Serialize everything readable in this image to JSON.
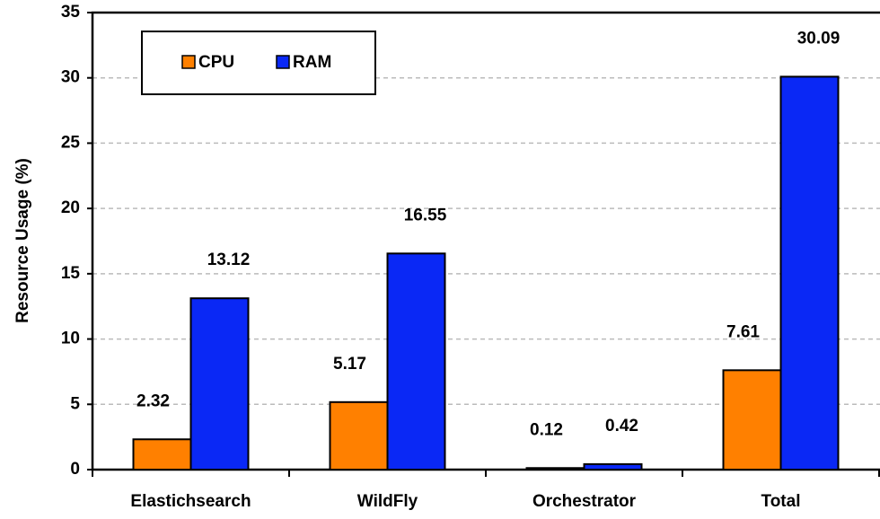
{
  "chart_data": {
    "type": "bar",
    "y_label": "Resource Usage (%)",
    "categories": [
      "Elastichsearch",
      "WildFly",
      "Orchestrator",
      "Total"
    ],
    "series": [
      {
        "name": "CPU",
        "color": "#ff8000",
        "values": [
          2.32,
          5.17,
          0.12,
          7.61
        ]
      },
      {
        "name": "RAM",
        "color": "#0a28f5",
        "values": [
          13.12,
          16.55,
          0.42,
          30.09
        ]
      }
    ],
    "ylim": [
      0,
      35
    ],
    "yticks": [
      0,
      5,
      10,
      15,
      20,
      25,
      30,
      35
    ],
    "grid": true,
    "legend": "upper left"
  }
}
